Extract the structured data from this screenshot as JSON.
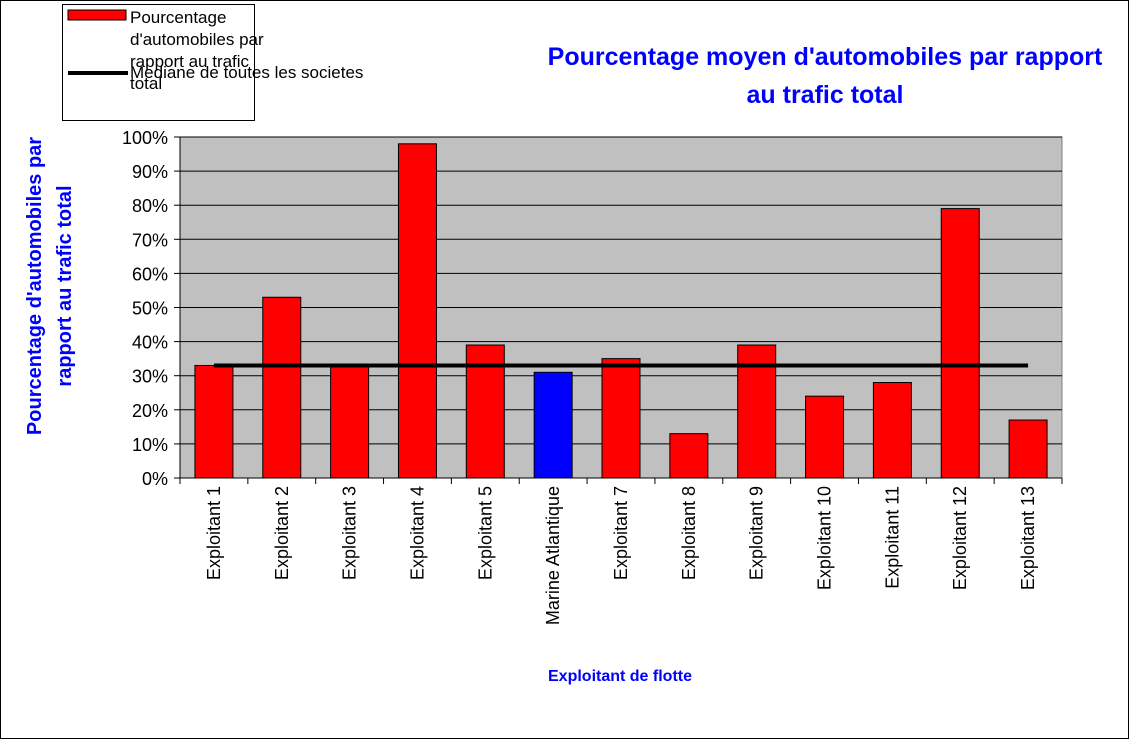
{
  "chart_data": {
    "type": "bar",
    "title": "Pourcentage moyen d'automobiles par rapport au trafic total",
    "y_label": "Pourcentage d'automobiles par rapport au trafic total",
    "x_label": "Exploitant de flotte",
    "categories": [
      "Exploitant 1",
      "Exploitant 2",
      "Exploitant 3",
      "Exploitant 4",
      "Exploitant 5",
      "Marine Atlantique",
      "Exploitant 7",
      "Exploitant 8",
      "Exploitant 9",
      "Exploitant 10",
      "Exploitant 11",
      "Exploitant 12",
      "Exploitant 13"
    ],
    "series": [
      {
        "name": "Pourcentage d'automobiles par rapport au trafic total",
        "color": "#ff0000",
        "colors": [
          "#ff0000",
          "#ff0000",
          "#ff0000",
          "#ff0000",
          "#ff0000",
          "#0000ff",
          "#ff0000",
          "#ff0000",
          "#ff0000",
          "#ff0000",
          "#ff0000",
          "#ff0000",
          "#ff0000"
        ],
        "values": [
          33,
          53,
          33,
          98,
          39,
          31,
          35,
          13,
          39,
          24,
          28,
          79,
          17
        ]
      },
      {
        "name": "Mediane de toutes les societes",
        "type": "line",
        "color": "#000000",
        "values": [
          33,
          33,
          33,
          33,
          33,
          33,
          33,
          33,
          33,
          33,
          33,
          33,
          33
        ]
      }
    ],
    "ylim": [
      0,
      100
    ],
    "yticks": [
      {
        "value": 0,
        "label": "0%"
      },
      {
        "value": 10,
        "label": "10%"
      },
      {
        "value": 20,
        "label": "20%"
      },
      {
        "value": 30,
        "label": "30%"
      },
      {
        "value": 40,
        "label": "40%"
      },
      {
        "value": 50,
        "label": "50%"
      },
      {
        "value": 60,
        "label": "60%"
      },
      {
        "value": 70,
        "label": "70%"
      },
      {
        "value": 80,
        "label": "80%"
      },
      {
        "value": 90,
        "label": "90%"
      },
      {
        "value": 100,
        "label": "100%"
      }
    ],
    "grid": true,
    "legend": "top-left"
  }
}
